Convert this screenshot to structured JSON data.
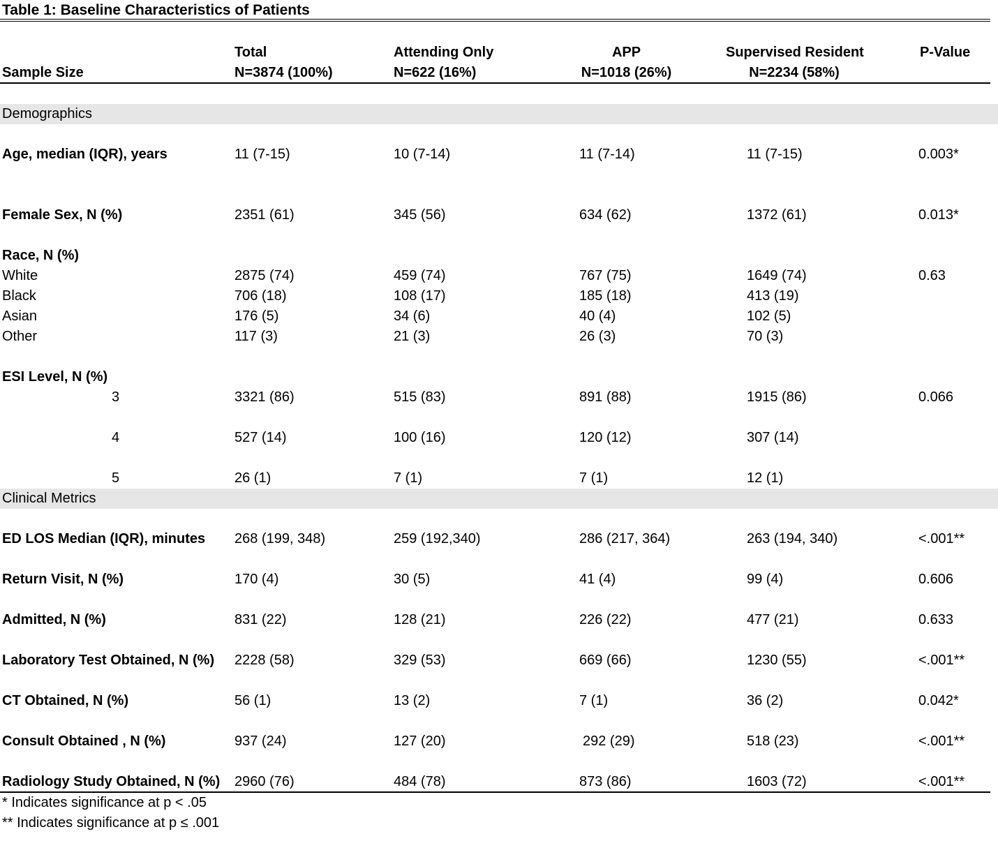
{
  "title": "Table 1: Baseline Characteristics of Patients",
  "header": {
    "sample_size": "Sample Size",
    "columns": [
      {
        "name": "Total",
        "n": "N=3874 (100%)"
      },
      {
        "name": "Attending Only",
        "n": "N=622 (16%)"
      },
      {
        "name": "APP",
        "n": "N=1018 (26%)"
      },
      {
        "name": "Supervised Resident",
        "n": "N=2234 (58%)"
      }
    ],
    "pvalue": "P-Value"
  },
  "sections": {
    "demographics": "Demographics",
    "clinical": "Clinical Metrics"
  },
  "rows": {
    "age": {
      "label": "Age, median (IQR), years",
      "v": [
        "11 (7-15)",
        "10 (7-14)",
        "11 (7-14)",
        "11 (7-15)",
        "0.003*"
      ]
    },
    "female": {
      "label": "Female Sex, N (%)",
      "v": [
        "2351 (61)",
        "345 (56)",
        "634 (62)",
        "1372 (61)",
        "0.013*"
      ]
    },
    "race_hdr": {
      "label": "Race, N (%)"
    },
    "white": {
      "label": "White",
      "v": [
        "2875 (74)",
        "459 (74)",
        "767 (75)",
        "1649 (74)",
        "0.63"
      ]
    },
    "black": {
      "label": "Black",
      "v": [
        "706 (18)",
        "108 (17)",
        "185 (18)",
        "413 (19)",
        ""
      ]
    },
    "asian": {
      "label": "Asian",
      "v": [
        "176 (5)",
        "34 (6)",
        "40 (4)",
        "102 (5)",
        ""
      ]
    },
    "other": {
      "label": "Other",
      "v": [
        "117 (3)",
        "21 (3)",
        "26 (3)",
        "70 (3)",
        ""
      ]
    },
    "esi_hdr": {
      "label": "ESI Level, N (%)"
    },
    "esi3": {
      "label": "3",
      "v": [
        "3321 (86)",
        "515 (83)",
        "891 (88)",
        "1915 (86)",
        "0.066"
      ]
    },
    "esi4": {
      "label": "4",
      "v": [
        "527 (14)",
        "100 (16)",
        "120 (12)",
        "307 (14)",
        ""
      ]
    },
    "esi5": {
      "label": "5",
      "v": [
        "26 (1)",
        "7 (1)",
        "7 (1)",
        "12 (1)",
        ""
      ]
    },
    "los": {
      "label": "ED LOS Median (IQR), minutes",
      "v": [
        "268 (199, 348)",
        "259 (192,340)",
        "286 (217, 364)",
        "263 (194, 340)",
        "<.001**"
      ]
    },
    "return": {
      "label": "Return Visit, N (%)",
      "v": [
        "170 (4)",
        "30 (5)",
        "41 (4)",
        "99 (4)",
        "0.606"
      ]
    },
    "admitted": {
      "label": "Admitted, N (%)",
      "v": [
        "831 (22)",
        "128 (21)",
        "226 (22)",
        "477 (21)",
        "0.633"
      ]
    },
    "lab": {
      "label": "Laboratory Test Obtained, N (%)",
      "v": [
        "2228 (58)",
        "329 (53)",
        "669 (66)",
        "1230 (55)",
        "<.001**"
      ]
    },
    "ct": {
      "label": "CT Obtained, N (%)",
      "v": [
        "56 (1)",
        "13 (2)",
        "7 (1)",
        "36 (2)",
        "0.042*"
      ]
    },
    "consult": {
      "label": "Consult Obtained , N (%)",
      "v": [
        "937 (24)",
        "127 (20)",
        "292 (29)",
        "518 (23)",
        "<.001**"
      ]
    },
    "radiology": {
      "label": "Radiology Study Obtained, N (%)",
      "v": [
        "2960 (76)",
        "484 (78)",
        "873 (86)",
        "1603 (72)",
        "<.001**"
      ]
    }
  },
  "footnotes": [
    "* Indicates significance at p < .05",
    "** Indicates significance at p ≤ .001"
  ]
}
